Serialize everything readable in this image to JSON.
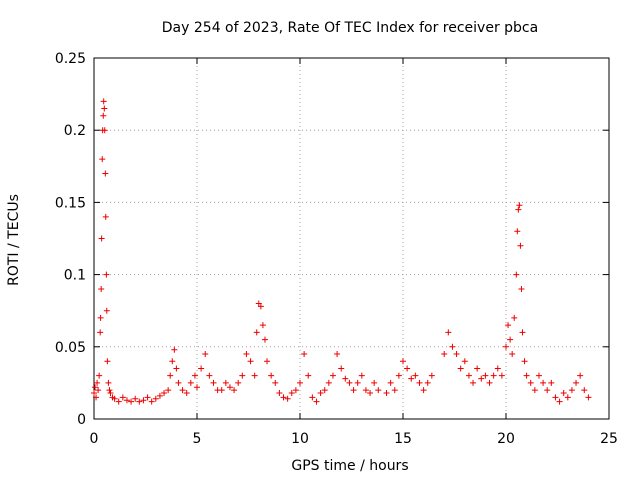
{
  "chart_data": {
    "type": "scatter",
    "title": "Day 254 of 2023, Rate Of TEC Index for receiver pbca",
    "xlabel": "GPS time / hours",
    "ylabel": "ROTI / TECUs",
    "xlim": [
      0,
      25
    ],
    "ylim": [
      0,
      0.25
    ],
    "x_ticks": [
      0,
      5,
      10,
      15,
      20,
      25
    ],
    "x_tick_labels": [
      "0",
      "5",
      "10",
      "15",
      "20",
      "25"
    ],
    "y_ticks": [
      0,
      0.05,
      0.1,
      0.15,
      0.2,
      0.25
    ],
    "y_tick_labels": [
      "0",
      "0.05",
      "0.1",
      "0.15",
      "0.2",
      "0.25"
    ],
    "grid": true,
    "marker": "+",
    "color": "#ee0000",
    "series": [
      {
        "name": "ROTI",
        "points": [
          [
            0.0,
            0.018
          ],
          [
            0.05,
            0.022
          ],
          [
            0.1,
            0.015
          ],
          [
            0.15,
            0.025
          ],
          [
            0.2,
            0.02
          ],
          [
            0.25,
            0.03
          ],
          [
            0.3,
            0.06
          ],
          [
            0.32,
            0.07
          ],
          [
            0.35,
            0.09
          ],
          [
            0.37,
            0.125
          ],
          [
            0.4,
            0.18
          ],
          [
            0.42,
            0.2
          ],
          [
            0.45,
            0.21
          ],
          [
            0.47,
            0.22
          ],
          [
            0.5,
            0.215
          ],
          [
            0.52,
            0.2
          ],
          [
            0.55,
            0.17
          ],
          [
            0.57,
            0.14
          ],
          [
            0.6,
            0.1
          ],
          [
            0.62,
            0.075
          ],
          [
            0.65,
            0.04
          ],
          [
            0.7,
            0.025
          ],
          [
            0.75,
            0.02
          ],
          [
            0.8,
            0.018
          ],
          [
            0.9,
            0.015
          ],
          [
            1.0,
            0.014
          ],
          [
            1.2,
            0.012
          ],
          [
            1.4,
            0.015
          ],
          [
            1.6,
            0.013
          ],
          [
            1.8,
            0.012
          ],
          [
            2.0,
            0.014
          ],
          [
            2.2,
            0.012
          ],
          [
            2.4,
            0.013
          ],
          [
            2.6,
            0.015
          ],
          [
            2.8,
            0.012
          ],
          [
            3.0,
            0.014
          ],
          [
            3.2,
            0.016
          ],
          [
            3.4,
            0.018
          ],
          [
            3.6,
            0.02
          ],
          [
            3.7,
            0.03
          ],
          [
            3.8,
            0.04
          ],
          [
            3.9,
            0.048
          ],
          [
            4.0,
            0.035
          ],
          [
            4.1,
            0.025
          ],
          [
            4.3,
            0.02
          ],
          [
            4.5,
            0.018
          ],
          [
            4.7,
            0.025
          ],
          [
            4.9,
            0.03
          ],
          [
            5.0,
            0.022
          ],
          [
            5.2,
            0.035
          ],
          [
            5.4,
            0.045
          ],
          [
            5.6,
            0.03
          ],
          [
            5.8,
            0.025
          ],
          [
            6.0,
            0.02
          ],
          [
            6.2,
            0.02
          ],
          [
            6.4,
            0.025
          ],
          [
            6.6,
            0.022
          ],
          [
            6.8,
            0.02
          ],
          [
            7.0,
            0.025
          ],
          [
            7.2,
            0.03
          ],
          [
            7.4,
            0.045
          ],
          [
            7.6,
            0.04
          ],
          [
            7.8,
            0.03
          ],
          [
            7.9,
            0.06
          ],
          [
            8.0,
            0.08
          ],
          [
            8.1,
            0.078
          ],
          [
            8.2,
            0.065
          ],
          [
            8.3,
            0.055
          ],
          [
            8.4,
            0.04
          ],
          [
            8.6,
            0.03
          ],
          [
            8.8,
            0.025
          ],
          [
            9.0,
            0.018
          ],
          [
            9.2,
            0.015
          ],
          [
            9.4,
            0.014
          ],
          [
            9.6,
            0.018
          ],
          [
            9.8,
            0.02
          ],
          [
            10.0,
            0.025
          ],
          [
            10.2,
            0.045
          ],
          [
            10.4,
            0.03
          ],
          [
            10.6,
            0.015
          ],
          [
            10.8,
            0.012
          ],
          [
            11.0,
            0.018
          ],
          [
            11.2,
            0.02
          ],
          [
            11.4,
            0.025
          ],
          [
            11.6,
            0.03
          ],
          [
            11.8,
            0.045
          ],
          [
            12.0,
            0.035
          ],
          [
            12.2,
            0.028
          ],
          [
            12.4,
            0.025
          ],
          [
            12.6,
            0.02
          ],
          [
            12.8,
            0.025
          ],
          [
            13.0,
            0.03
          ],
          [
            13.2,
            0.02
          ],
          [
            13.4,
            0.018
          ],
          [
            13.6,
            0.025
          ],
          [
            13.8,
            0.02
          ],
          [
            14.2,
            0.018
          ],
          [
            14.4,
            0.025
          ],
          [
            14.6,
            0.02
          ],
          [
            14.8,
            0.03
          ],
          [
            15.0,
            0.04
          ],
          [
            15.2,
            0.035
          ],
          [
            15.4,
            0.028
          ],
          [
            15.6,
            0.03
          ],
          [
            15.8,
            0.025
          ],
          [
            16.0,
            0.02
          ],
          [
            16.2,
            0.025
          ],
          [
            16.4,
            0.03
          ],
          [
            17.0,
            0.045
          ],
          [
            17.2,
            0.06
          ],
          [
            17.4,
            0.05
          ],
          [
            17.6,
            0.045
          ],
          [
            17.8,
            0.035
          ],
          [
            18.0,
            0.04
          ],
          [
            18.2,
            0.03
          ],
          [
            18.4,
            0.025
          ],
          [
            18.6,
            0.035
          ],
          [
            18.8,
            0.028
          ],
          [
            19.0,
            0.03
          ],
          [
            19.2,
            0.025
          ],
          [
            19.4,
            0.03
          ],
          [
            19.6,
            0.035
          ],
          [
            19.8,
            0.03
          ],
          [
            20.0,
            0.05
          ],
          [
            20.1,
            0.065
          ],
          [
            20.2,
            0.055
          ],
          [
            20.3,
            0.045
          ],
          [
            20.4,
            0.07
          ],
          [
            20.5,
            0.1
          ],
          [
            20.55,
            0.13
          ],
          [
            20.6,
            0.145
          ],
          [
            20.65,
            0.148
          ],
          [
            20.7,
            0.12
          ],
          [
            20.75,
            0.09
          ],
          [
            20.8,
            0.06
          ],
          [
            20.9,
            0.04
          ],
          [
            21.0,
            0.03
          ],
          [
            21.2,
            0.025
          ],
          [
            21.4,
            0.02
          ],
          [
            21.6,
            0.03
          ],
          [
            21.8,
            0.025
          ],
          [
            22.0,
            0.02
          ],
          [
            22.2,
            0.025
          ],
          [
            22.4,
            0.015
          ],
          [
            22.6,
            0.012
          ],
          [
            22.8,
            0.018
          ],
          [
            23.0,
            0.015
          ],
          [
            23.2,
            0.02
          ],
          [
            23.4,
            0.025
          ],
          [
            23.6,
            0.03
          ],
          [
            23.8,
            0.02
          ],
          [
            24.0,
            0.015
          ]
        ]
      }
    ]
  }
}
